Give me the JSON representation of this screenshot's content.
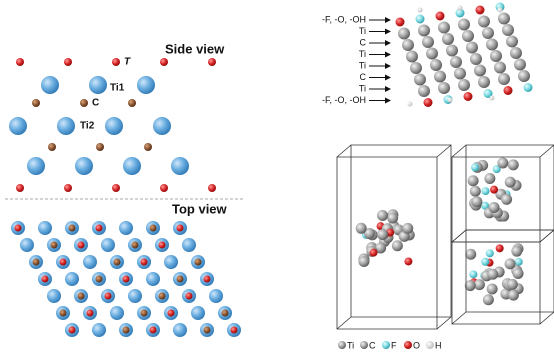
{
  "side_view": {
    "title": "Side view",
    "labels": {
      "t": "T",
      "ti1": "Ti1",
      "c": "C",
      "ti2": "Ti2"
    }
  },
  "top_view": {
    "title": "Top view"
  },
  "slab": {
    "layers": [
      "-F, -O, -OH",
      "Ti",
      "C",
      "Ti",
      "Ti",
      "C",
      "Ti",
      "-F, -O, -OH"
    ]
  },
  "legend": [
    "Ti",
    "C",
    "F",
    "O",
    "H"
  ]
}
